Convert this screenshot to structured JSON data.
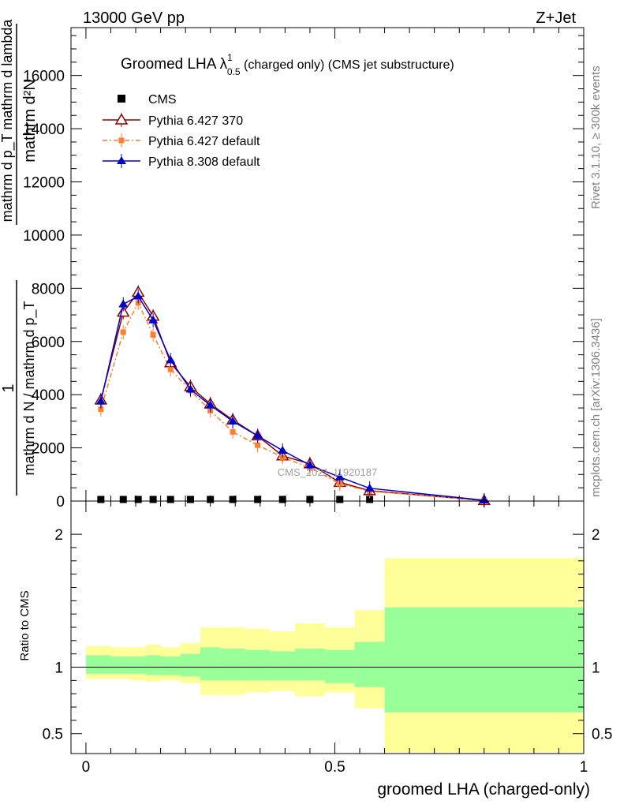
{
  "header": {
    "left": "13000 GeV pp",
    "right": "Z+Jet"
  },
  "side_labels": {
    "rivet": "Rivet 3.1.10, ≥ 300k events",
    "mcplots": "mcplots.cern.ch [arXiv:1306.3436]"
  },
  "watermark": "CMS_2021_I1920187",
  "chart_data": {
    "type": "line",
    "title": {
      "main": "Groomed LHA ",
      "lambda": "λ",
      "sup": "1",
      "sub": "0.5",
      "rest": "  (charged only) (CMS jet substructure)"
    },
    "ylabel": {
      "top": "mathrm d²N",
      "bottom": "mathrm d p_T mathrm d lambda",
      "numerator": "1",
      "denominator": "mathrm d N / mathrm d p_T"
    },
    "xlabel": "groomed LHA (charged-only)",
    "xlim": [
      -0.03,
      1.0
    ],
    "ylim": [
      0,
      17800
    ],
    "yticks": [
      0,
      2000,
      4000,
      6000,
      8000,
      10000,
      12000,
      14000,
      16000
    ],
    "ytick_labels": [
      "0",
      "2000",
      "4000",
      "6000",
      "8000",
      "10000",
      "12000",
      "14000",
      "16000"
    ],
    "xticks": [
      0,
      0.5,
      1
    ],
    "xtick_labels": [
      "0",
      "0.5",
      "1"
    ],
    "x": [
      0.03,
      0.075,
      0.105,
      0.135,
      0.17,
      0.21,
      0.25,
      0.295,
      0.345,
      0.395,
      0.45,
      0.51,
      0.57,
      0.8
    ],
    "series": [
      {
        "name": "CMS",
        "color": "#000000",
        "marker": "square",
        "values": [
          60,
          60,
          60,
          60,
          60,
          60,
          60,
          60,
          60,
          60,
          60,
          60,
          60,
          null
        ]
      },
      {
        "name": "Pythia 6.427 370",
        "color": "#8b0000",
        "marker": "open-triangle",
        "values": [
          3800,
          7100,
          7850,
          6950,
          5200,
          4300,
          3650,
          3050,
          2450,
          1700,
          1400,
          700,
          390,
          20
        ]
      },
      {
        "name": "Pythia 6.427 default",
        "color": "#ff7f2a",
        "marker": "small-square",
        "dash": "dashdot",
        "values": [
          3450,
          6350,
          7450,
          6250,
          4950,
          4150,
          3400,
          2600,
          2100,
          1650,
          1250,
          650,
          370,
          20
        ]
      },
      {
        "name": "Pythia 8.308 default",
        "color": "#0000cc",
        "marker": "triangle",
        "values": [
          3750,
          7400,
          7700,
          6800,
          5300,
          4200,
          3600,
          3000,
          2450,
          1900,
          1350,
          900,
          480,
          30
        ]
      }
    ],
    "ratio": {
      "ylabel": "Ratio to CMS",
      "ylim": [
        0.35,
        2.25
      ],
      "yticks": [
        0.5,
        1,
        2
      ],
      "ytick_labels": [
        "0.5",
        "1",
        "2"
      ],
      "bin_edges": [
        0,
        0.05,
        0.09,
        0.12,
        0.15,
        0.19,
        0.23,
        0.27,
        0.32,
        0.37,
        0.42,
        0.48,
        0.54,
        0.6,
        1.0
      ],
      "stat_up": [
        1.09,
        1.08,
        1.08,
        1.09,
        1.08,
        1.1,
        1.15,
        1.14,
        1.13,
        1.12,
        1.14,
        1.13,
        1.19,
        1.45
      ],
      "stat_lo": [
        0.95,
        0.95,
        0.95,
        0.94,
        0.94,
        0.93,
        0.9,
        0.9,
        0.9,
        0.9,
        0.9,
        0.88,
        0.85,
        0.66
      ],
      "total_up": [
        1.16,
        1.15,
        1.15,
        1.17,
        1.15,
        1.18,
        1.3,
        1.3,
        1.29,
        1.27,
        1.33,
        1.3,
        1.43,
        1.82
      ],
      "total_lo": [
        0.91,
        0.91,
        0.9,
        0.89,
        0.9,
        0.88,
        0.79,
        0.79,
        0.81,
        0.82,
        0.78,
        0.81,
        0.69,
        0.36
      ]
    }
  }
}
